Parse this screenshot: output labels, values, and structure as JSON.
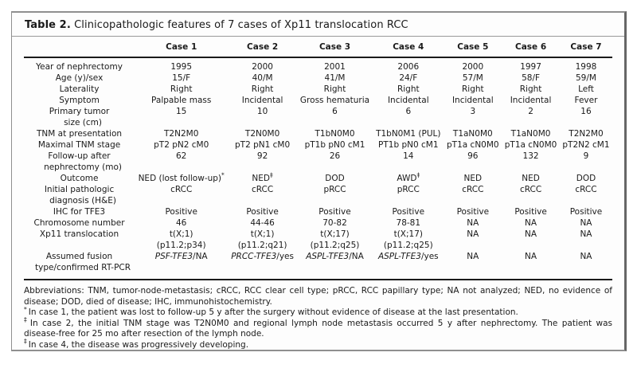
{
  "header": {
    "table_label": "Table 2.",
    "title": "Clinicopathologic features of 7 cases of Xp11 translocation RCC"
  },
  "table": {
    "columns": [
      "Case 1",
      "Case 2",
      "Case 3",
      "Case 4",
      "Case 5",
      "Case 6",
      "Case 7"
    ],
    "rows": [
      {
        "label": [
          "Year of nephrectomy"
        ],
        "cells": [
          "1995",
          "2000",
          "2001",
          "2006",
          "2000",
          "1997",
          "1998"
        ]
      },
      {
        "label": [
          "Age (y)/sex"
        ],
        "cells": [
          "15/F",
          "40/M",
          "41/M",
          "24/F",
          "57/M",
          "58/F",
          "59/M"
        ]
      },
      {
        "label": [
          "Laterality"
        ],
        "cells": [
          "Right",
          "Right",
          "Right",
          "Right",
          "Right",
          "Right",
          "Left"
        ]
      },
      {
        "label": [
          "Symptom"
        ],
        "cells": [
          "Palpable mass",
          "Incidental",
          "Gross hematuria",
          "Incidental",
          "Incidental",
          "Incidental",
          "Fever"
        ]
      },
      {
        "label": [
          "Primary tumor",
          "size (cm)"
        ],
        "cells": [
          "15",
          "10",
          "6",
          "6",
          "3",
          "2",
          "16"
        ]
      },
      {
        "label": [
          "TNM at presentation"
        ],
        "cells": [
          "T2N2M0",
          "T2N0M0",
          "T1bN0M0",
          "T1bN0M1 (PUL)",
          "T1aN0M0",
          "T1aN0M0",
          "T2N2M0"
        ]
      },
      {
        "label": [
          "Maximal TNM stage"
        ],
        "cells": [
          "pT2 pN2 cM0",
          "pT2 pN1 cM0",
          "pT1b pN0 cM1",
          "PT1b pN0 cM1",
          "pT1a cN0M0",
          "pT1a cN0M0",
          "pT2N2 cM1"
        ]
      },
      {
        "label": [
          "Follow-up after",
          "nephrectomy (mo)"
        ],
        "cells": [
          "62",
          "92",
          "26",
          "14",
          "96",
          "132",
          "9"
        ]
      },
      {
        "label": [
          "Outcome"
        ],
        "cells": [
          {
            "text": "NED (lost follow-up)",
            "sup": "*"
          },
          {
            "text": "NED",
            "sup": "‡"
          },
          "DOD",
          {
            "text": "AWD",
            "sup": "‡"
          },
          "NED",
          "NED",
          "DOD"
        ]
      },
      {
        "label": [
          "Initial pathologic",
          "diagnosis (H&E)"
        ],
        "cells": [
          "cRCC",
          "cRCC",
          "pRCC",
          "pRCC",
          "cRCC",
          "cRCC",
          "cRCC"
        ]
      },
      {
        "label": [
          "IHC for TFE3"
        ],
        "cells": [
          "Positive",
          "Positive",
          "Positive",
          "Positive",
          "Positive",
          "Positive",
          "Positive"
        ]
      },
      {
        "label": [
          "Chromosome number"
        ],
        "cells": [
          "46",
          "44-46",
          "70-82",
          "78-81",
          "NA",
          "NA",
          "NA"
        ]
      },
      {
        "label": [
          "Xp11 translocation"
        ],
        "cells": [
          {
            "lines": [
              "t(X;1)",
              "(p11.2;p34)"
            ]
          },
          {
            "lines": [
              "t(X;1)",
              "(p11.2;q21)"
            ]
          },
          {
            "lines": [
              "t(X;17)",
              "(p11.2;q25)"
            ]
          },
          {
            "lines": [
              "t(X;17)",
              "(p11.2;q25)"
            ]
          },
          "NA",
          "NA",
          "NA"
        ]
      },
      {
        "label": [
          "Assumed fusion",
          "type/confirmed RT-PCR"
        ],
        "italic_gene": true,
        "cells": [
          "PSF-TFE3/NA",
          "PRCC-TFE3/yes",
          "ASPL-TFE3/NA",
          "ASPL-TFE3/yes",
          "NA",
          "NA",
          "NA"
        ]
      }
    ]
  },
  "footer": {
    "abbreviations": "Abbreviations: TNM, tumor-node-metastasis; cRCC, RCC clear cell type; pRCC, RCC papillary type; NA not analyzed; NED, no evidence of disease; DOD, died of disease; IHC, immunohistochemistry.",
    "footnotes": [
      {
        "marker": "*",
        "text": "In case 1, the patient was lost to follow-up 5 y after the surgery without evidence of disease at the last presentation."
      },
      {
        "marker": "‡",
        "text": "In case 2, the initial TNM stage was T2N0M0 and regional lymph node metastasis occurred 5 y after nephrectomy. The patient was disease-free for 25 mo after resection of the lymph node."
      },
      {
        "marker": "‡",
        "text": "In case 4, the disease was progressively developing."
      }
    ]
  },
  "colors": {
    "rule_black": "#1a1a1a",
    "border_gray": "#8f8f8f",
    "text": "#1a1a1a",
    "background": "#fdfdfd"
  }
}
